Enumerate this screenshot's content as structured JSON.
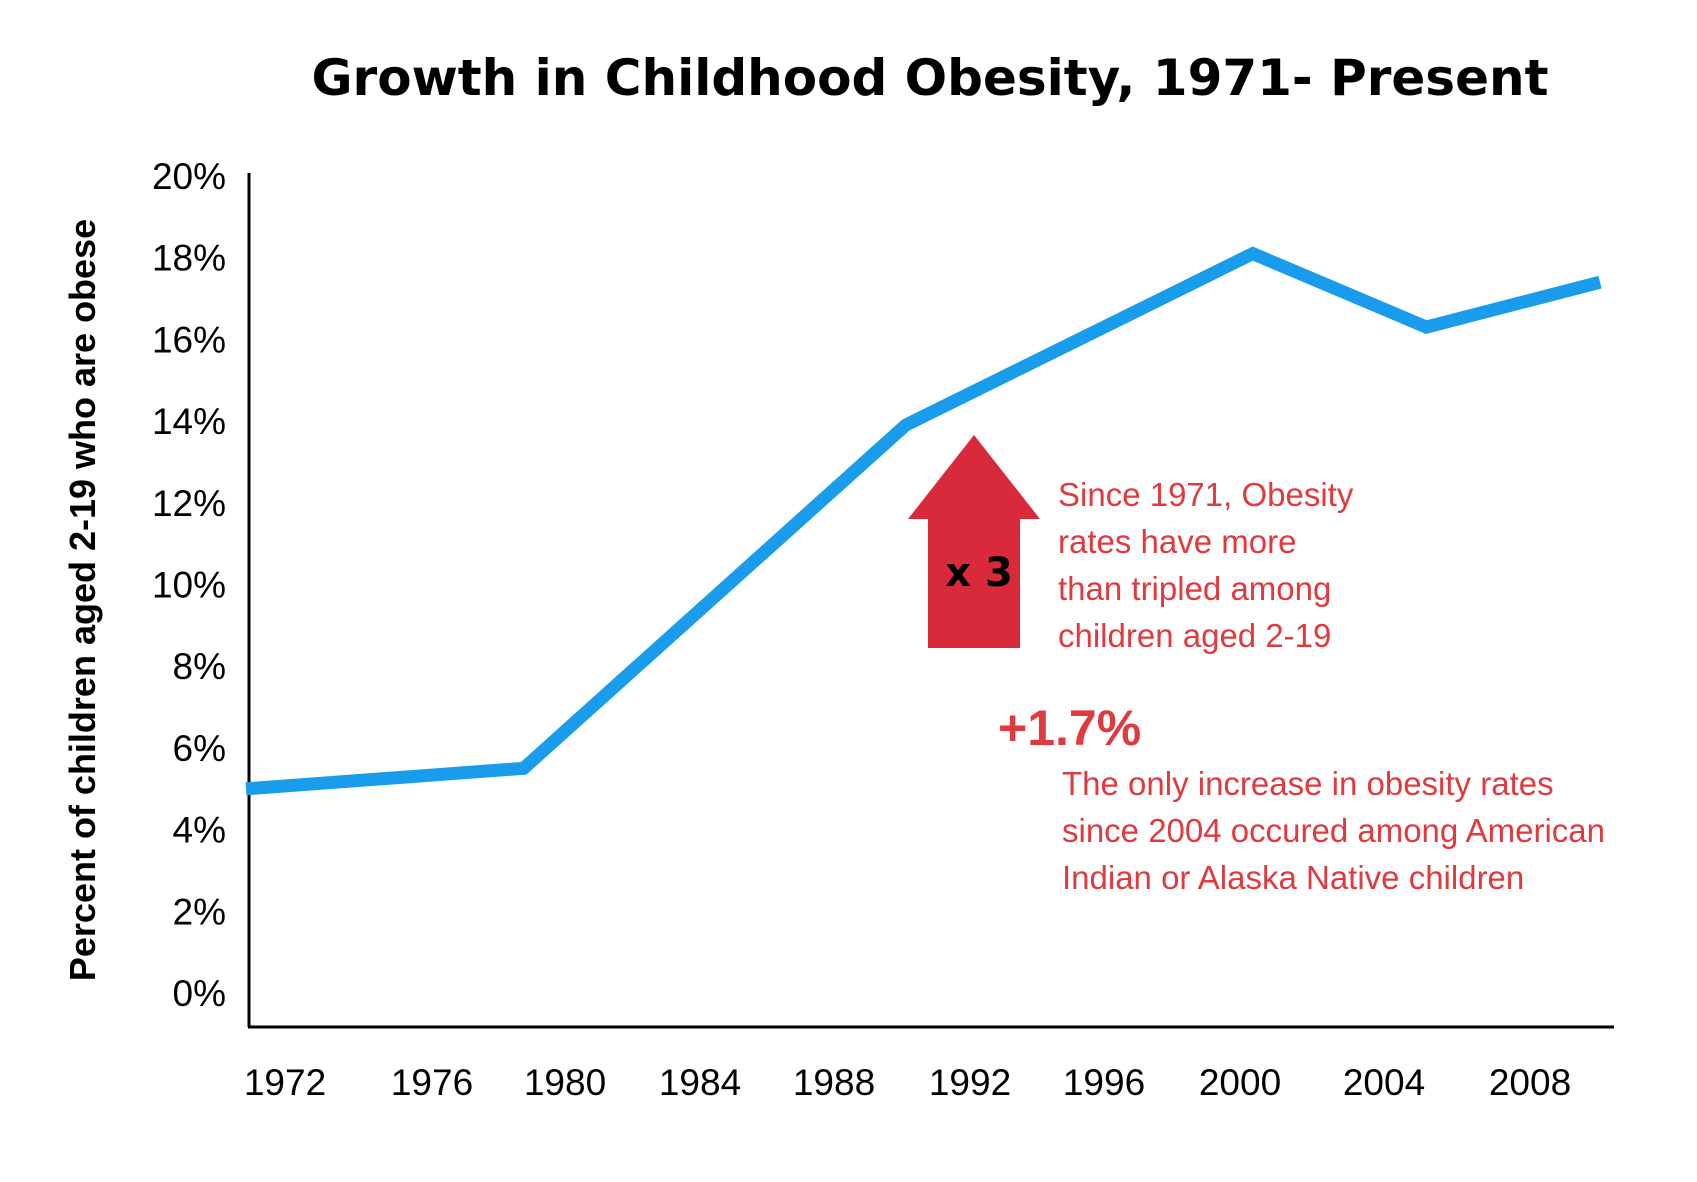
{
  "colors": {
    "line": "#1a9cec",
    "accent": "#e03a3e",
    "arrow": "#d92a3b",
    "axis": "#000000"
  },
  "chart_data": {
    "type": "line",
    "title": "Growth in Childhood Obesity, 1971- Present",
    "xlabel": "",
    "ylabel": "Percent of children aged 2-19 who are obese",
    "x_ticks": [
      "1972",
      "1976",
      "1980",
      "1984",
      "1988",
      "1992",
      "1996",
      "2000",
      "2004",
      "2008"
    ],
    "y_ticks": [
      "0%",
      "2%",
      "4%",
      "6%",
      "8%",
      "10%",
      "12%",
      "14%",
      "16%",
      "18%",
      "20%"
    ],
    "ylim": [
      0,
      20
    ],
    "grid": false,
    "legend": "none",
    "series": [
      {
        "x": [
          1971,
          1979,
          1990,
          2000,
          2005,
          2010
        ],
        "y": [
          5.0,
          5.5,
          13.9,
          18.1,
          16.3,
          17.4
        ]
      }
    ],
    "annotations": {
      "arrow_label": "x 3",
      "tripled": [
        "Since 1971, Obesity",
        "rates have more",
        "than tripled among",
        "children aged 2-19"
      ],
      "increase_value": "+1.7%",
      "increase_text": [
        "The only increase in obesity rates",
        "since 2004 occured among American",
        "Indian or Alaska Native children"
      ]
    }
  }
}
